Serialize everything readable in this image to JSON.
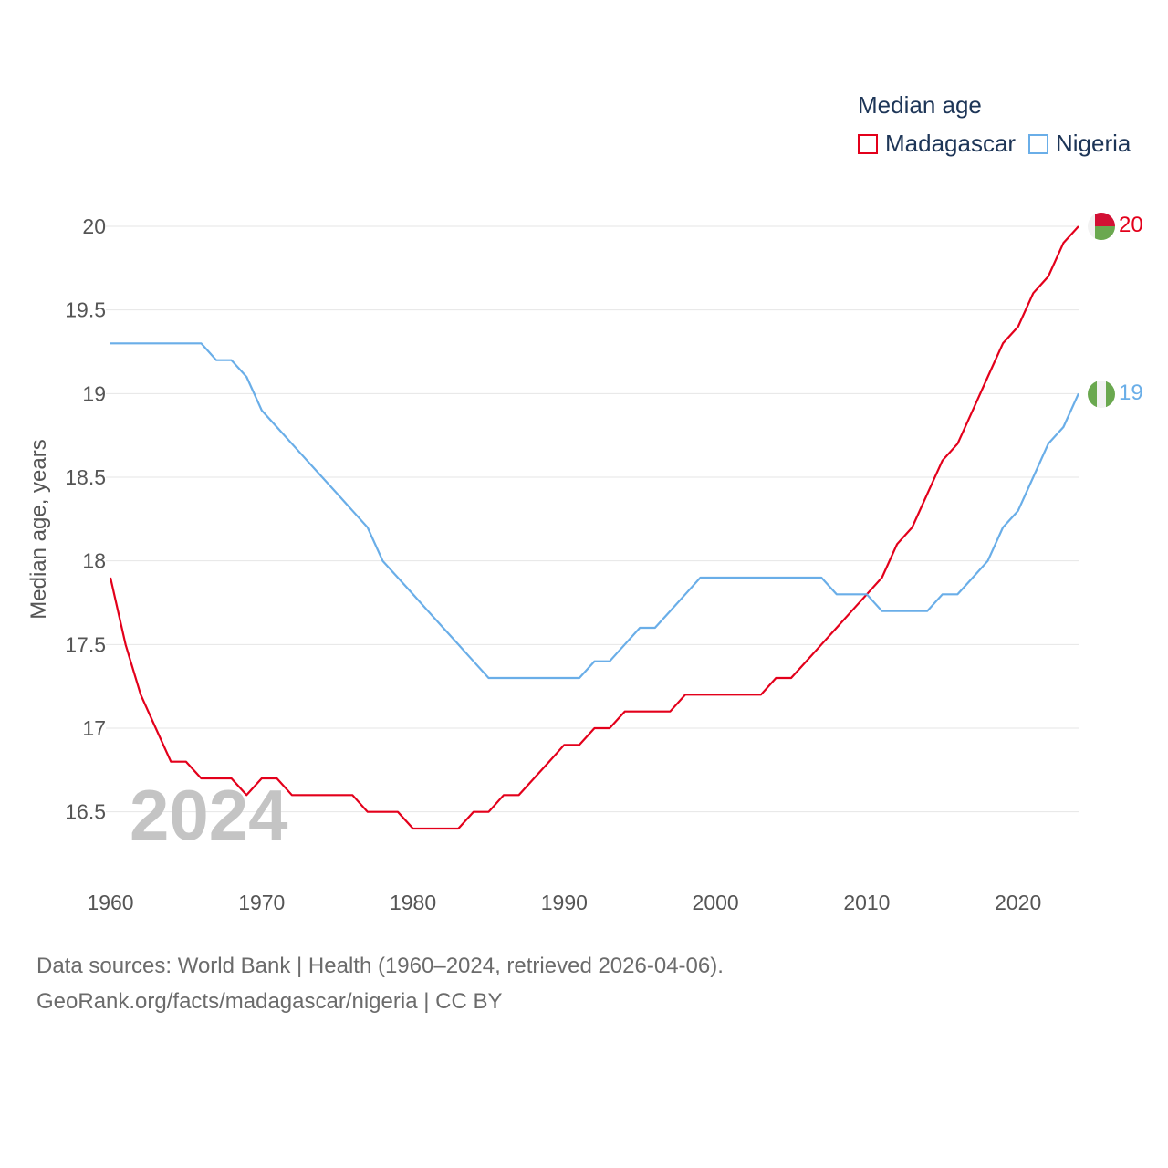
{
  "legend": {
    "title": "Median age",
    "items": [
      {
        "name": "Madagascar",
        "color": "#e3001b"
      },
      {
        "name": "Nigeria",
        "color": "#6aaee8"
      }
    ]
  },
  "year_overlay": "2024",
  "source": {
    "line1": "Data sources: World Bank | Health (1960–2024, retrieved 2026-04-06).",
    "line2": "GeoRank.org/facts/madagascar/nigeria | CC BY"
  },
  "chart_data": {
    "type": "line",
    "title": "Median age",
    "xlabel": "",
    "ylabel": "Median age, years",
    "xlim": [
      1960,
      2024
    ],
    "ylim": [
      16.2,
      20
    ],
    "xticks": [
      "1960",
      "1970",
      "1980",
      "1990",
      "2000",
      "2010",
      "2020"
    ],
    "yticks": [
      "16.5",
      "17",
      "17.5",
      "18",
      "18.5",
      "19",
      "19.5",
      "20"
    ],
    "grid": true,
    "x": [
      1960,
      1961,
      1962,
      1963,
      1964,
      1965,
      1966,
      1967,
      1968,
      1969,
      1970,
      1971,
      1972,
      1973,
      1974,
      1975,
      1976,
      1977,
      1978,
      1979,
      1980,
      1981,
      1982,
      1983,
      1984,
      1985,
      1986,
      1987,
      1988,
      1989,
      1990,
      1991,
      1992,
      1993,
      1994,
      1995,
      1996,
      1997,
      1998,
      1999,
      2000,
      2001,
      2002,
      2003,
      2004,
      2005,
      2006,
      2007,
      2008,
      2009,
      2010,
      2011,
      2012,
      2013,
      2014,
      2015,
      2016,
      2017,
      2018,
      2019,
      2020,
      2021,
      2022,
      2023,
      2024
    ],
    "series": [
      {
        "name": "Madagascar",
        "color": "#e3001b",
        "end_label": "20",
        "values": [
          17.9,
          17.5,
          17.2,
          17.0,
          16.8,
          16.8,
          16.7,
          16.7,
          16.7,
          16.6,
          16.7,
          16.7,
          16.6,
          16.6,
          16.6,
          16.6,
          16.6,
          16.5,
          16.5,
          16.5,
          16.4,
          16.4,
          16.4,
          16.4,
          16.5,
          16.5,
          16.6,
          16.6,
          16.7,
          16.8,
          16.9,
          16.9,
          17.0,
          17.0,
          17.1,
          17.1,
          17.1,
          17.1,
          17.2,
          17.2,
          17.2,
          17.2,
          17.2,
          17.2,
          17.3,
          17.3,
          17.4,
          17.5,
          17.6,
          17.7,
          17.8,
          17.9,
          18.1,
          18.2,
          18.4,
          18.6,
          18.7,
          18.9,
          19.1,
          19.3,
          19.4,
          19.6,
          19.7,
          19.9,
          20.0
        ]
      },
      {
        "name": "Nigeria",
        "color": "#6aaee8",
        "end_label": "19",
        "values": [
          19.3,
          19.3,
          19.3,
          19.3,
          19.3,
          19.3,
          19.3,
          19.2,
          19.2,
          19.1,
          18.9,
          18.8,
          18.7,
          18.6,
          18.5,
          18.4,
          18.3,
          18.2,
          18.0,
          17.9,
          17.8,
          17.7,
          17.6,
          17.5,
          17.4,
          17.3,
          17.3,
          17.3,
          17.3,
          17.3,
          17.3,
          17.3,
          17.4,
          17.4,
          17.5,
          17.6,
          17.6,
          17.7,
          17.8,
          17.9,
          17.9,
          17.9,
          17.9,
          17.9,
          17.9,
          17.9,
          17.9,
          17.9,
          17.8,
          17.8,
          17.8,
          17.7,
          17.7,
          17.7,
          17.7,
          17.8,
          17.8,
          17.9,
          18.0,
          18.2,
          18.3,
          18.5,
          18.7,
          18.8,
          19.0
        ]
      }
    ]
  }
}
